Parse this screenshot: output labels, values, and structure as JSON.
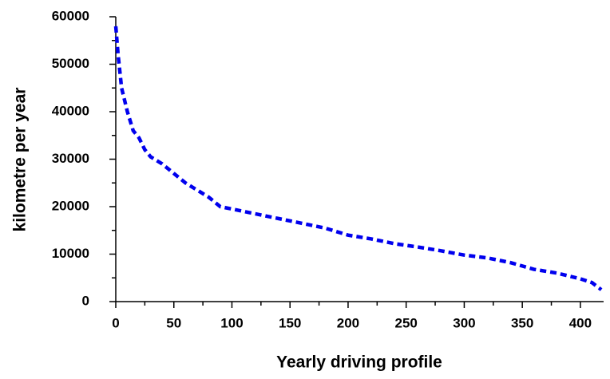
{
  "chart_data": {
    "type": "line",
    "xlabel": "Yearly driving profile",
    "ylabel": "kilometre per year",
    "x": [
      0,
      2,
      5,
      10,
      15,
      20,
      25,
      30,
      40,
      50,
      60,
      70,
      80,
      90,
      100,
      120,
      140,
      160,
      180,
      200,
      220,
      240,
      260,
      280,
      300,
      320,
      340,
      360,
      380,
      400,
      410,
      418
    ],
    "series": [
      {
        "name": "kilometre per year",
        "color": "#0000ee",
        "values": [
          58000,
          52000,
          45000,
          40000,
          36000,
          34500,
          32000,
          30500,
          29000,
          27000,
          25000,
          23500,
          22000,
          20000,
          19500,
          18500,
          17500,
          16500,
          15500,
          14000,
          13200,
          12200,
          11500,
          10700,
          9800,
          9200,
          8200,
          6800,
          6000,
          4800,
          4000,
          2500
        ]
      }
    ],
    "xlim": [
      0,
      420
    ],
    "ylim": [
      0,
      60000
    ],
    "xticks": [
      0,
      50,
      100,
      150,
      200,
      250,
      300,
      350,
      400
    ],
    "yticks": [
      0,
      10000,
      20000,
      30000,
      40000,
      50000,
      60000
    ],
    "grid": false
  }
}
